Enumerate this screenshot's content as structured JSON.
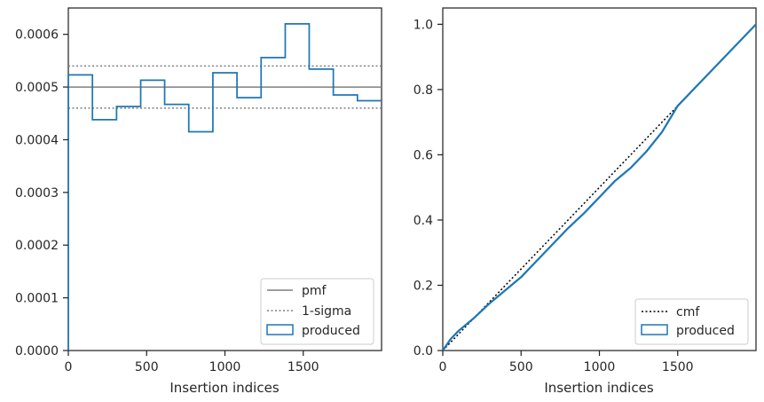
{
  "chart_data": [
    {
      "type": "step",
      "xlabel": "Insertion indices",
      "ylabel": "",
      "xlim": [
        0,
        2000
      ],
      "ylim": [
        0,
        0.00065
      ],
      "xticks": [
        0,
        500,
        1000,
        1500
      ],
      "xtick_labels": [
        "0",
        "500",
        "1000",
        "1500"
      ],
      "yticks": [
        0,
        0.0001,
        0.0002,
        0.0003,
        0.0004,
        0.0005,
        0.0006
      ],
      "ytick_labels": [
        "0.0000",
        "0.0001",
        "0.0002",
        "0.0003",
        "0.0004",
        "0.0005",
        "0.0006"
      ],
      "legend_position": "lower right",
      "legend": [
        "pmf",
        "1-sigma",
        "produced"
      ],
      "pmf": 0.0005,
      "sigma_band": [
        0.00046,
        0.00054
      ],
      "bin_edges": [
        0,
        154,
        308,
        462,
        615,
        769,
        923,
        1077,
        1231,
        1385,
        1538,
        1692,
        1846,
        2000
      ],
      "values": [
        0.000523,
        0.000438,
        0.000463,
        0.000513,
        0.000467,
        0.000415,
        0.000527,
        0.00048,
        0.000556,
        0.00062,
        0.000534,
        0.000485,
        0.000474
      ],
      "colors": {
        "produced": "#1f77b4",
        "pmf": "#7f7f7f",
        "sigma": "#7f7f7f"
      }
    },
    {
      "type": "line",
      "xlabel": "Insertion indices",
      "ylabel": "",
      "xlim": [
        0,
        2000
      ],
      "ylim": [
        0,
        1.05
      ],
      "xticks": [
        0,
        500,
        1000,
        1500
      ],
      "xtick_labels": [
        "0",
        "500",
        "1000",
        "1500"
      ],
      "yticks": [
        0,
        0.2,
        0.4,
        0.6,
        0.8,
        1.0
      ],
      "ytick_labels": [
        "0.0",
        "0.2",
        "0.4",
        "0.6",
        "0.8",
        "1.0"
      ],
      "legend_position": "lower right",
      "legend": [
        "cmf",
        "produced"
      ],
      "cmf": {
        "x": [
          0,
          2000
        ],
        "y": [
          0,
          1.0
        ]
      },
      "produced": {
        "x": [
          0,
          50,
          100,
          200,
          300,
          400,
          500,
          600,
          700,
          800,
          900,
          950,
          1000,
          1050,
          1100,
          1200,
          1300,
          1400,
          1450,
          1500,
          1600,
          1700,
          1800,
          1900,
          2000
        ],
        "y": [
          0,
          0.035,
          0.06,
          0.1,
          0.145,
          0.185,
          0.225,
          0.275,
          0.325,
          0.375,
          0.42,
          0.445,
          0.47,
          0.495,
          0.52,
          0.56,
          0.61,
          0.67,
          0.71,
          0.75,
          0.8,
          0.85,
          0.9,
          0.95,
          1.0
        ]
      },
      "colors": {
        "produced": "#1f77b4",
        "cmf": "#000000"
      }
    }
  ]
}
